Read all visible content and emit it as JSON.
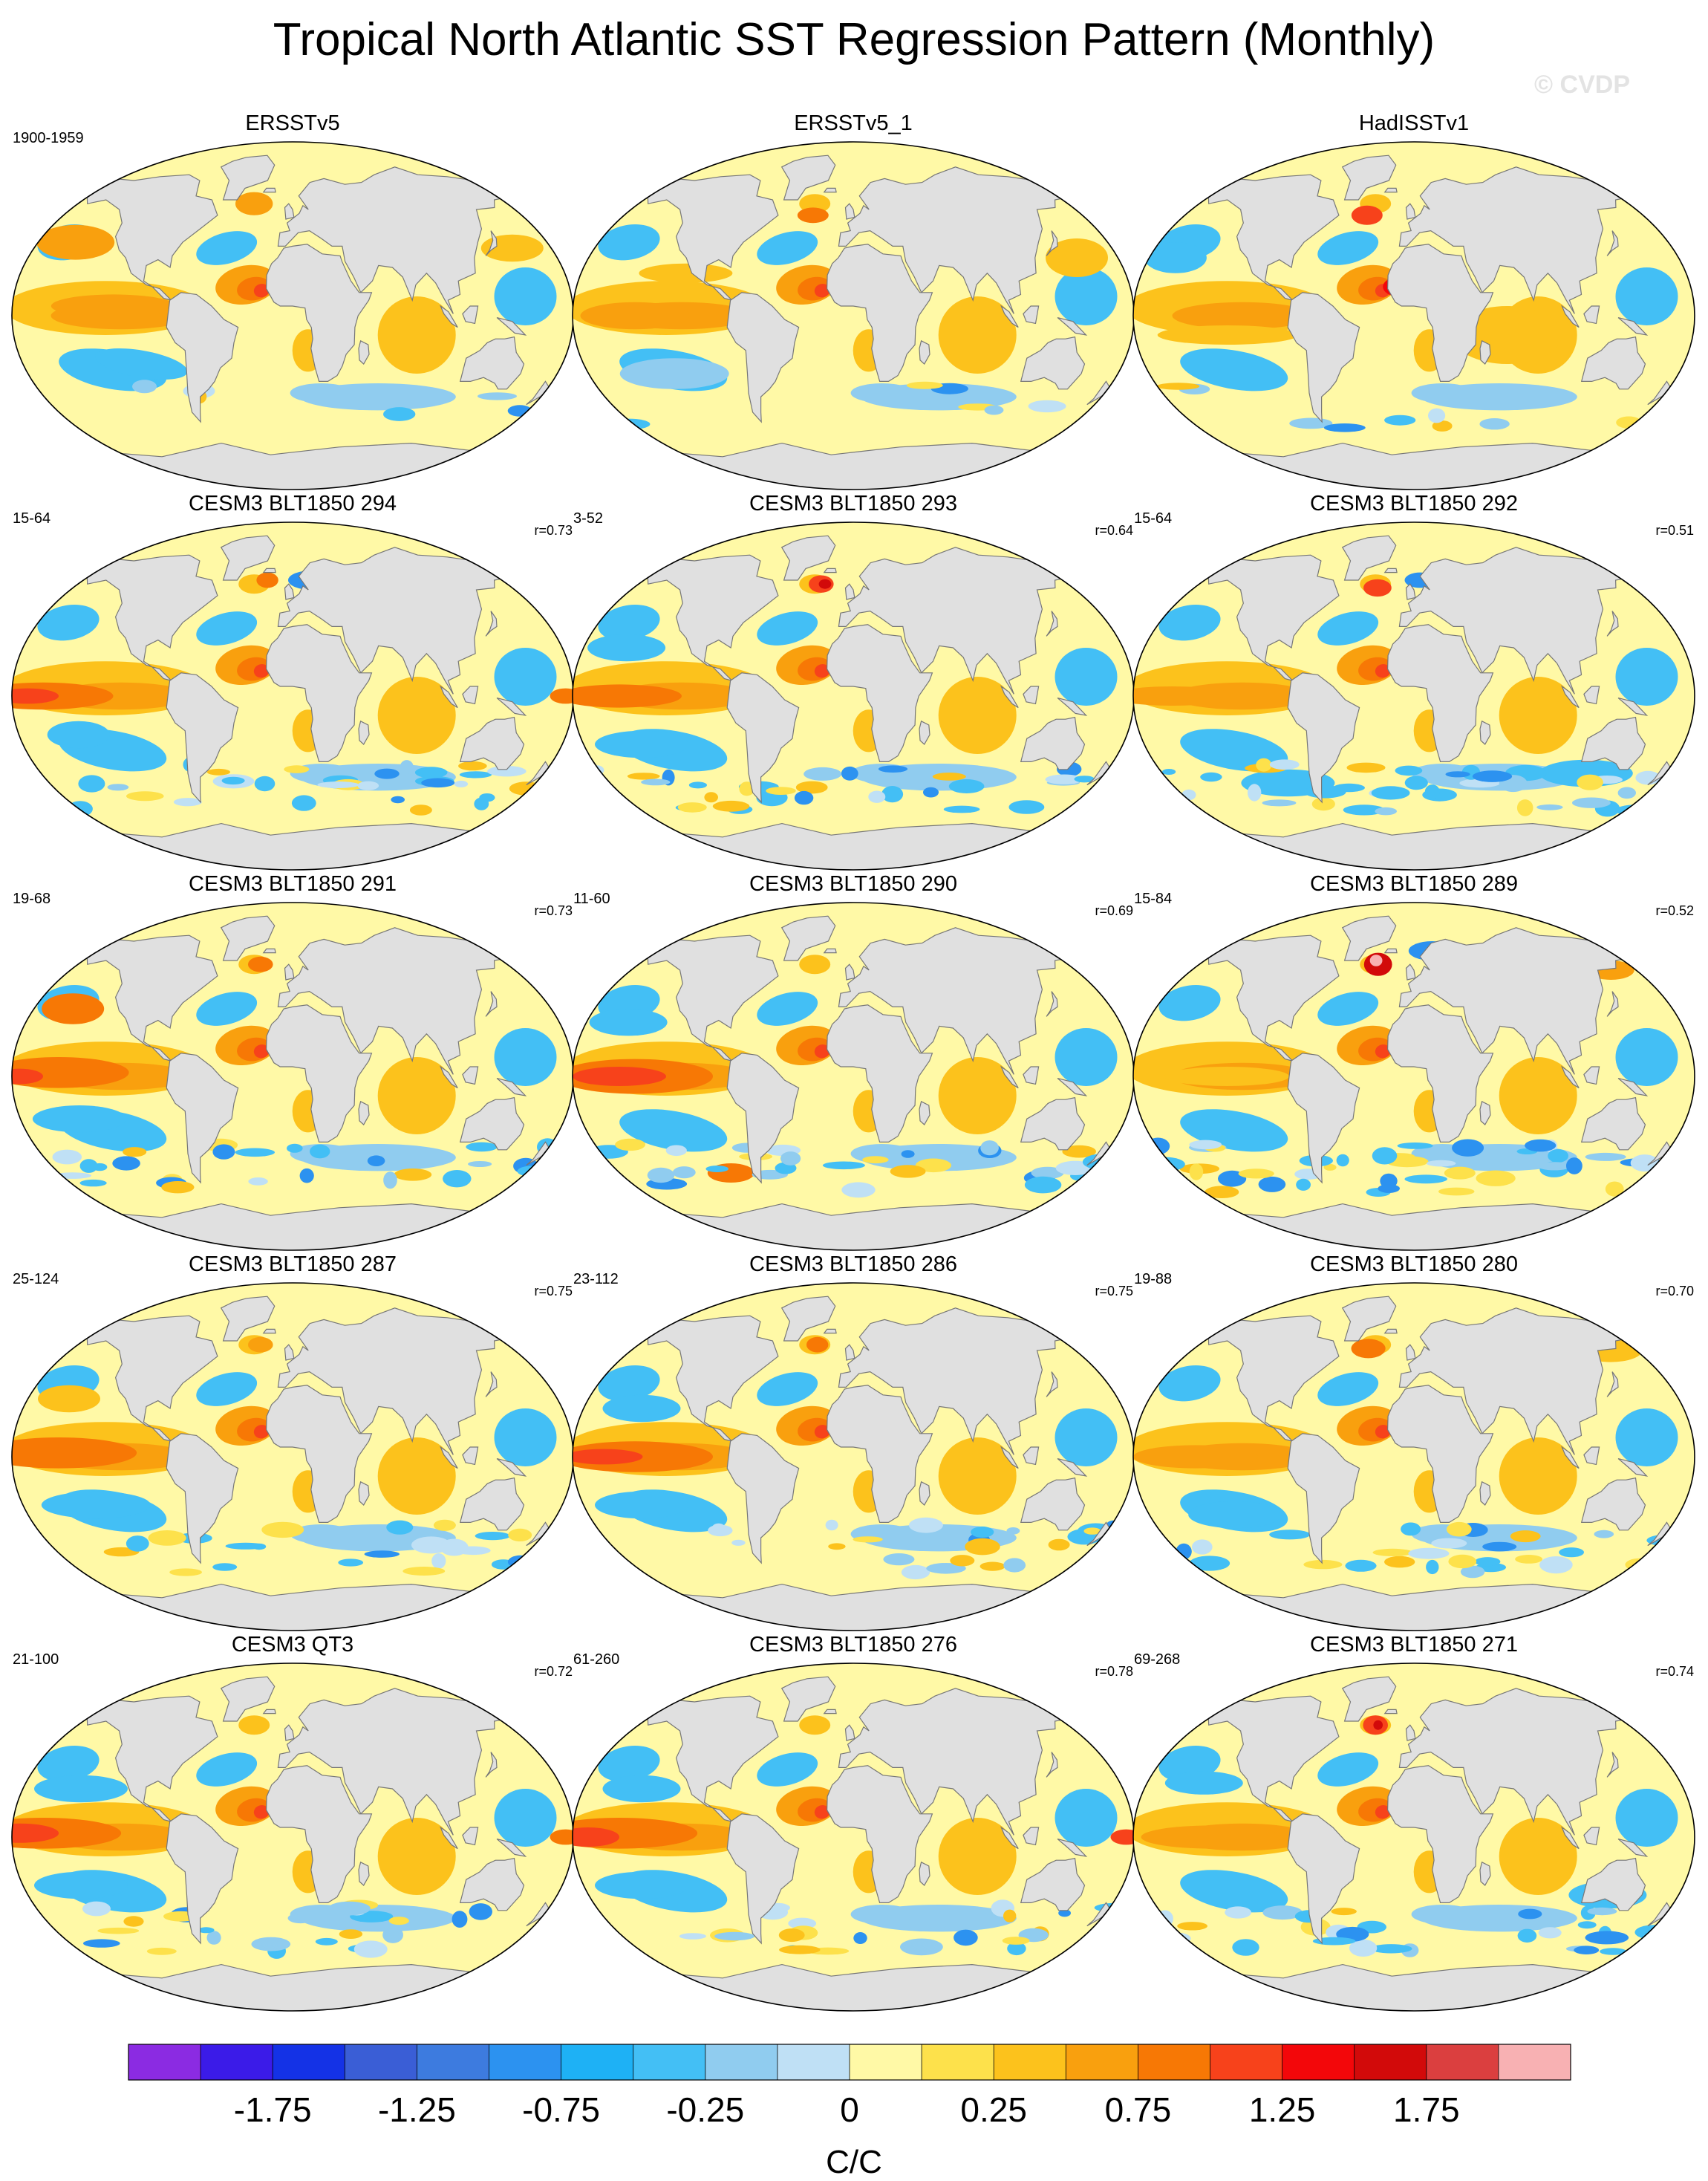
{
  "title": "Tropical North Atlantic SST Regression Pattern (Monthly)",
  "copyright": "© CVDP",
  "chart_data": {
    "type": "heatmap",
    "projection": "Robinson global maps (filled contours)",
    "panels": [
      {
        "title": "ERSSTv5",
        "period": "1900-1959",
        "corr": "",
        "style": 0
      },
      {
        "title": "ERSSTv5_1",
        "period": "",
        "corr": "",
        "style": 1
      },
      {
        "title": "HadISSTv1",
        "period": "",
        "corr": "",
        "style": 2
      },
      {
        "title": "CESM3 BLT1850 294",
        "period": "15-64",
        "corr": "r=0.73",
        "style": 3
      },
      {
        "title": "CESM3 BLT1850 293",
        "period": "3-52",
        "corr": "r=0.64",
        "style": 4
      },
      {
        "title": "CESM3 BLT1850 292",
        "period": "15-64",
        "corr": "r=0.51",
        "style": 5
      },
      {
        "title": "CESM3 BLT1850 291",
        "period": "19-68",
        "corr": "r=0.73",
        "style": 6
      },
      {
        "title": "CESM3 BLT1850 290",
        "period": "11-60",
        "corr": "r=0.69",
        "style": 7
      },
      {
        "title": "CESM3 BLT1850 289",
        "period": "15-84",
        "corr": "r=0.52",
        "style": 8
      },
      {
        "title": "CESM3 BLT1850 287",
        "period": "25-124",
        "corr": "r=0.75",
        "style": 9
      },
      {
        "title": "CESM3 BLT1850 286",
        "period": "23-112",
        "corr": "r=0.75",
        "style": 10
      },
      {
        "title": "CESM3 BLT1850 280",
        "period": "19-88",
        "corr": "r=0.70",
        "style": 11
      },
      {
        "title": "CESM3 QT3",
        "period": "21-100",
        "corr": "r=0.72",
        "style": 12
      },
      {
        "title": "CESM3 BLT1850 276",
        "period": "61-260",
        "corr": "r=0.78",
        "style": 13
      },
      {
        "title": "CESM3 BLT1850 271",
        "period": "69-268",
        "corr": "r=0.74",
        "style": 14
      }
    ],
    "colorbar": {
      "unit": "C/C",
      "levels": [
        -2.0,
        -1.75,
        -1.5,
        -1.25,
        -1.0,
        -0.75,
        -0.5,
        -0.25,
        -0.1,
        0,
        0.1,
        0.25,
        0.5,
        0.75,
        1.0,
        1.25,
        1.5,
        1.75,
        2.0
      ],
      "colors": [
        "#8b2be2",
        "#3b1be8",
        "#1432e6",
        "#3a5ed6",
        "#3d7bdf",
        "#2c92f0",
        "#1eb1f5",
        "#43bff5",
        "#90ccef",
        "#bfe0f5",
        "#fff9a6",
        "#fde14b",
        "#fcc21c",
        "#f9a00e",
        "#f77805",
        "#f7421b",
        "#f3070a",
        "#d20a0a",
        "#db3f3f",
        "#f8b1b3"
      ],
      "tick_labels": [
        "-1.75",
        "-1.25",
        "-0.75",
        "-0.25",
        "0",
        "0.25",
        "0.75",
        "1.25",
        "1.75"
      ],
      "tick_values": [
        -1.75,
        -1.25,
        -0.75,
        -0.25,
        0,
        0.25,
        0.75,
        1.25,
        1.75
      ]
    }
  }
}
